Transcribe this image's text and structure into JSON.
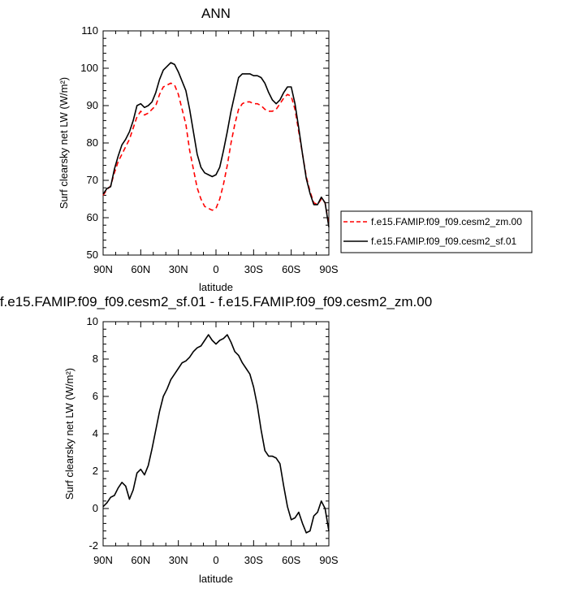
{
  "chart_data": [
    {
      "type": "line",
      "title": "ANN",
      "xlabel": "latitude",
      "ylabel": "Surf clearsky net LW (W/m²)",
      "xlim": [
        90,
        -90
      ],
      "ylim": [
        50,
        110
      ],
      "yticks": [
        50,
        60,
        70,
        80,
        90,
        100,
        110
      ],
      "xticks": [
        90,
        60,
        30,
        0,
        -30,
        -60,
        -90
      ],
      "xtick_labels": [
        "90N",
        "60N",
        "30N",
        "0",
        "30S",
        "60S",
        "90S"
      ],
      "legend": "outside-right",
      "series": [
        {
          "name": "f.e15.FAMIP.f09_f09.cesm2_zm.00",
          "color": "#ff0000",
          "style": "dashed",
          "x": [
            90,
            87,
            84,
            81,
            78,
            75,
            72,
            69,
            66,
            63,
            60,
            57,
            54,
            51,
            48,
            45,
            42,
            39,
            36,
            33,
            30,
            27,
            24,
            21,
            18,
            15,
            12,
            9,
            6,
            3,
            0,
            -3,
            -6,
            -9,
            -12,
            -15,
            -18,
            -21,
            -24,
            -27,
            -30,
            -33,
            -36,
            -39,
            -42,
            -45,
            -48,
            -51,
            -54,
            -57,
            -60,
            -63,
            -66,
            -69,
            -72,
            -75,
            -78,
            -81,
            -84,
            -87,
            -90
          ],
          "y": [
            66.0,
            67.5,
            68.5,
            72.0,
            75.0,
            77.0,
            79.0,
            81.0,
            84.0,
            87.0,
            88.5,
            87.5,
            88.0,
            89.0,
            90.0,
            93.0,
            95.0,
            95.5,
            96.0,
            95.5,
            93.0,
            89.0,
            85.0,
            78.0,
            73.0,
            68.0,
            65.0,
            63.0,
            62.5,
            62.0,
            62.5,
            65.0,
            69.0,
            74.0,
            80.0,
            85.0,
            89.0,
            90.5,
            91.0,
            91.0,
            90.5,
            90.5,
            90.0,
            89.0,
            88.5,
            88.5,
            89.0,
            90.5,
            92.0,
            93.0,
            92.5,
            89.0,
            83.0,
            77.0,
            71.0,
            67.0,
            64.0,
            63.5,
            65.0,
            64.0,
            58.0
          ]
        },
        {
          "name": "f.e15.FAMIP.f09_f09.cesm2_sf.01",
          "color": "#000000",
          "style": "solid",
          "x": [
            90,
            87,
            84,
            81,
            78,
            75,
            72,
            69,
            66,
            63,
            60,
            57,
            54,
            51,
            48,
            45,
            42,
            39,
            36,
            33,
            30,
            27,
            24,
            21,
            18,
            15,
            12,
            9,
            6,
            3,
            0,
            -3,
            -6,
            -9,
            -12,
            -15,
            -18,
            -21,
            -24,
            -27,
            -30,
            -33,
            -36,
            -39,
            -42,
            -45,
            -48,
            -51,
            -54,
            -57,
            -60,
            -63,
            -66,
            -69,
            -72,
            -75,
            -78,
            -81,
            -84,
            -87,
            -90
          ],
          "y": [
            66.3,
            67.8,
            68.3,
            73.0,
            76.5,
            79.5,
            81.0,
            83.0,
            86.0,
            90.0,
            90.5,
            89.5,
            90.0,
            91.0,
            93.5,
            97.0,
            99.5,
            100.5,
            101.5,
            101.0,
            99.0,
            96.5,
            94.0,
            89.0,
            83.0,
            77.0,
            73.5,
            72.0,
            71.5,
            71.0,
            71.5,
            73.5,
            78.0,
            83.0,
            88.5,
            93.0,
            97.5,
            98.5,
            98.5,
            98.5,
            98.0,
            98.0,
            97.5,
            96.0,
            93.5,
            91.5,
            90.5,
            91.5,
            93.5,
            95.0,
            95.0,
            90.5,
            84.0,
            77.0,
            70.5,
            66.5,
            63.5,
            63.5,
            65.5,
            64.0,
            57.5
          ]
        }
      ]
    },
    {
      "type": "line",
      "title": "f.e15.FAMIP.f09_f09.cesm2_sf.01 - f.e15.FAMIP.f09_f09.cesm2_zm.00",
      "xlabel": "latitude",
      "ylabel": "Surf clearsky net LW (W/m²)",
      "xlim": [
        90,
        -90
      ],
      "ylim": [
        -2,
        10
      ],
      "yticks": [
        -2,
        0,
        2,
        4,
        6,
        8,
        10
      ],
      "xticks": [
        90,
        60,
        30,
        0,
        -30,
        -60,
        -90
      ],
      "xtick_labels": [
        "90N",
        "60N",
        "30N",
        "0",
        "30S",
        "60S",
        "90S"
      ],
      "series": [
        {
          "color": "#000000",
          "style": "solid",
          "x": [
            90,
            87,
            84,
            81,
            78,
            75,
            72,
            69,
            66,
            63,
            60,
            57,
            54,
            51,
            48,
            45,
            42,
            39,
            36,
            33,
            30,
            27,
            24,
            21,
            18,
            15,
            12,
            9,
            6,
            3,
            0,
            -3,
            -6,
            -9,
            -12,
            -15,
            -18,
            -21,
            -24,
            -27,
            -30,
            -33,
            -36,
            -39,
            -42,
            -45,
            -48,
            -51,
            -54,
            -57,
            -60,
            -63,
            -66,
            -69,
            -72,
            -75,
            -78,
            -81,
            -84,
            -87,
            -90
          ],
          "y": [
            0.1,
            0.3,
            0.6,
            0.7,
            1.1,
            1.4,
            1.2,
            0.5,
            1.0,
            1.9,
            2.1,
            1.8,
            2.3,
            3.2,
            4.2,
            5.2,
            6.0,
            6.4,
            6.9,
            7.2,
            7.5,
            7.8,
            7.9,
            8.1,
            8.4,
            8.6,
            8.7,
            9.0,
            9.3,
            9.0,
            8.8,
            9.0,
            9.1,
            9.3,
            8.9,
            8.4,
            8.2,
            7.8,
            7.5,
            7.2,
            6.5,
            5.5,
            4.2,
            3.1,
            2.8,
            2.8,
            2.7,
            2.4,
            1.2,
            0.1,
            -0.6,
            -0.5,
            -0.2,
            -0.8,
            -1.3,
            -1.2,
            -0.4,
            -0.2,
            0.4,
            0.0,
            -1.2
          ]
        }
      ]
    }
  ]
}
